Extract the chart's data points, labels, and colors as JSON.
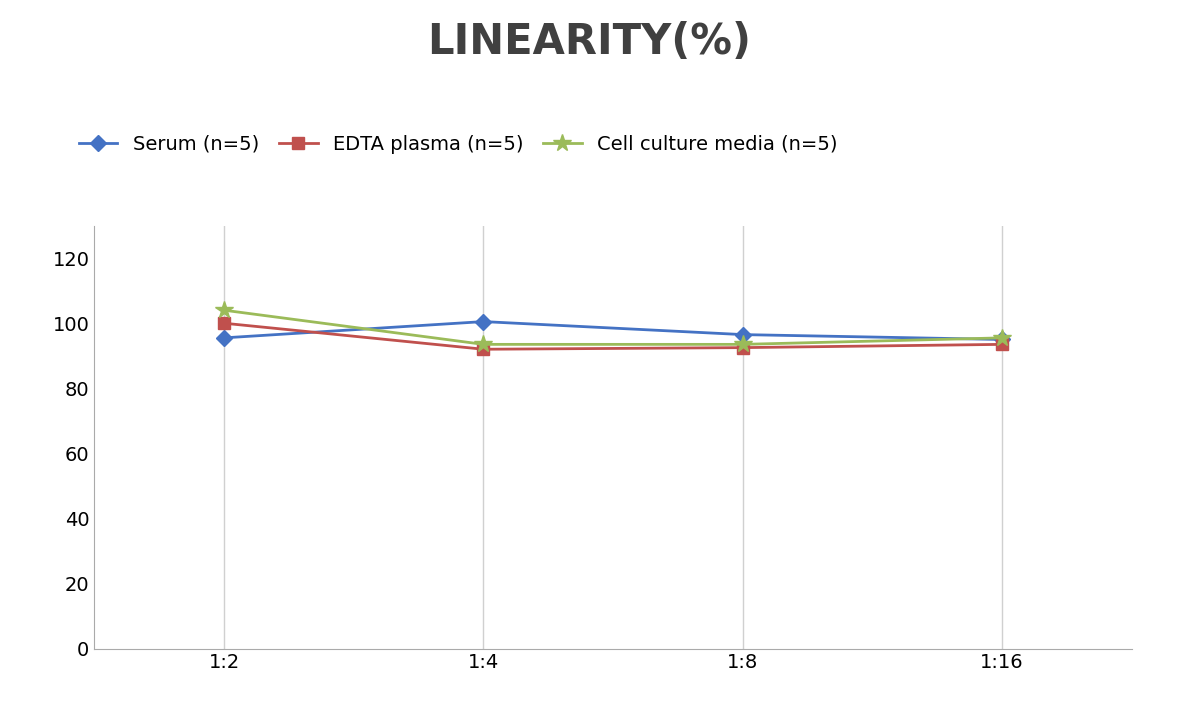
{
  "title": "LINEARITY(%)",
  "title_fontsize": 30,
  "title_fontweight": "bold",
  "title_color": "#404040",
  "x_labels": [
    "1:2",
    "1:4",
    "1:8",
    "1:16"
  ],
  "x_positions": [
    0,
    1,
    2,
    3
  ],
  "series": [
    {
      "name": "Serum (n=5)",
      "values": [
        95.5,
        100.5,
        96.5,
        95.0
      ],
      "color": "#4472C4",
      "marker": "D",
      "marker_size": 8,
      "linewidth": 2
    },
    {
      "name": "EDTA plasma (n=5)",
      "values": [
        100.0,
        92.0,
        92.5,
        93.5
      ],
      "color": "#C0504D",
      "marker": "s",
      "marker_size": 8,
      "linewidth": 2
    },
    {
      "name": "Cell culture media (n=5)",
      "values": [
        104.0,
        93.5,
        93.5,
        95.5
      ],
      "color": "#9BBB59",
      "marker": "*",
      "marker_size": 13,
      "linewidth": 2
    }
  ],
  "ylim": [
    0,
    130
  ],
  "yticks": [
    0,
    20,
    40,
    60,
    80,
    100,
    120
  ],
  "tick_fontsize": 14,
  "background_color": "#ffffff",
  "grid_color": "#d0d0d0",
  "legend_fontsize": 14
}
